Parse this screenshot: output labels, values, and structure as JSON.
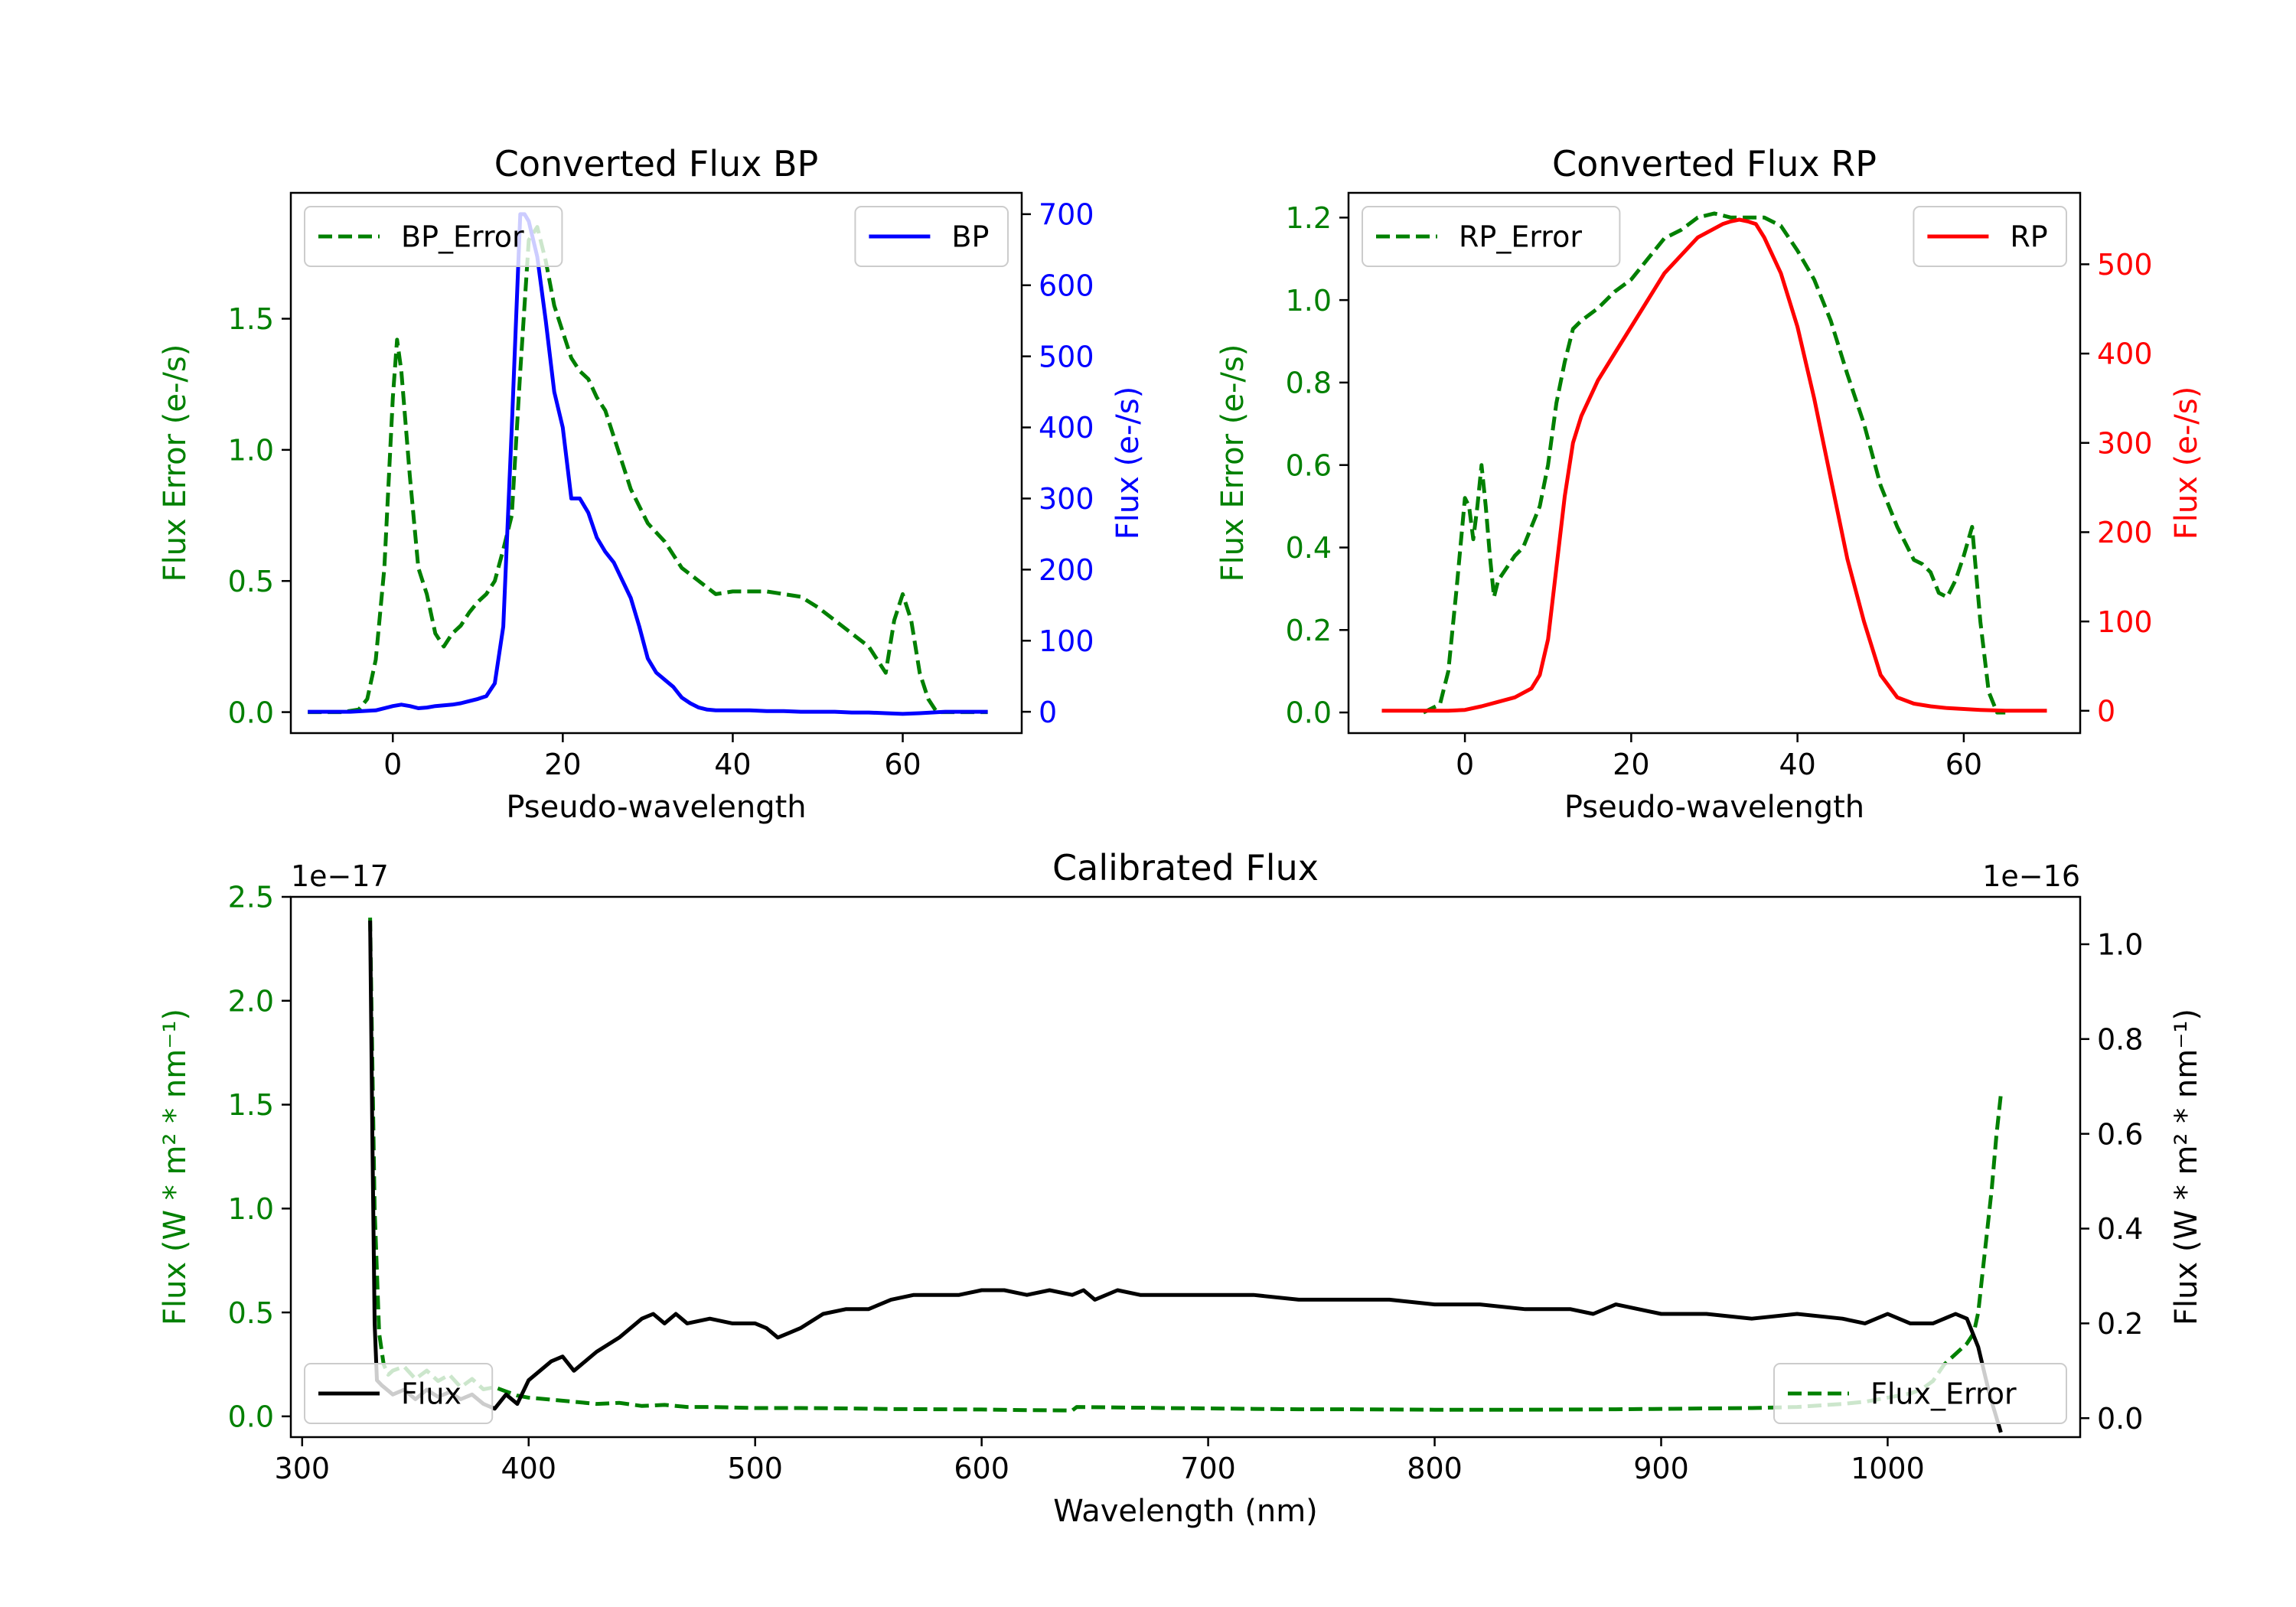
{
  "chart_data": [
    {
      "type": "line",
      "id": "bp",
      "title": "Converted Flux BP",
      "xlabel": "Pseudo-wavelength",
      "ylabel_left": "Flux Error (e-/s)",
      "ylabel_right": "Flux (e-/s)",
      "xlim": [
        -12,
        74
      ],
      "ylim_left": [
        -0.08,
        1.98
      ],
      "ylim_right": [
        -30,
        730
      ],
      "xticks": [
        0,
        20,
        40,
        60
      ],
      "yticks_left": [
        0.0,
        0.5,
        1.0,
        1.5
      ],
      "yticks_right": [
        0,
        100,
        200,
        300,
        400,
        500,
        600,
        700
      ],
      "series": [
        {
          "name": "BP_Error",
          "axis": "left",
          "color": "#008000",
          "style": "dashed",
          "legend": "upper left",
          "x": [
            -10,
            -6,
            -4,
            -3,
            -2,
            -1,
            0,
            0.5,
            1,
            2,
            3,
            3.5,
            4,
            5,
            6,
            7,
            8,
            9,
            10,
            11,
            12,
            13,
            14,
            15,
            16,
            17,
            18,
            19,
            20,
            21,
            22,
            23,
            24,
            25,
            26,
            27,
            28,
            30,
            32,
            34,
            36,
            38,
            40,
            42,
            44,
            46,
            48,
            50,
            52,
            54,
            56,
            57,
            58,
            59,
            60,
            61,
            62,
            63,
            64,
            66,
            70
          ],
          "y": [
            0.0,
            0.0,
            0.01,
            0.05,
            0.2,
            0.55,
            1.2,
            1.42,
            1.3,
            0.9,
            0.55,
            0.5,
            0.45,
            0.3,
            0.25,
            0.3,
            0.33,
            0.38,
            0.42,
            0.45,
            0.5,
            0.62,
            0.75,
            1.3,
            1.8,
            1.85,
            1.72,
            1.55,
            1.45,
            1.35,
            1.3,
            1.27,
            1.2,
            1.15,
            1.05,
            0.95,
            0.85,
            0.72,
            0.65,
            0.55,
            0.5,
            0.45,
            0.46,
            0.46,
            0.46,
            0.45,
            0.44,
            0.4,
            0.35,
            0.3,
            0.25,
            0.2,
            0.15,
            0.35,
            0.45,
            0.35,
            0.15,
            0.05,
            0.0,
            0.0,
            0.0
          ]
        },
        {
          "name": "BP",
          "axis": "right",
          "color": "#0000ff",
          "style": "solid",
          "legend": "upper right",
          "x": [
            -10,
            -5,
            -2,
            0,
            1,
            2,
            3,
            4,
            5,
            6,
            7,
            8,
            9,
            10,
            11,
            12,
            13,
            14,
            15,
            15.5,
            16,
            17,
            18,
            19,
            20,
            21,
            22,
            23,
            24,
            25,
            26,
            27,
            28,
            29,
            30,
            31,
            32,
            33,
            34,
            35,
            36,
            37,
            38,
            40,
            42,
            44,
            46,
            48,
            50,
            52,
            54,
            56,
            58,
            60,
            62,
            65,
            70
          ],
          "y": [
            0,
            0,
            2,
            8,
            10,
            8,
            5,
            6,
            8,
            9,
            10,
            12,
            15,
            18,
            22,
            40,
            120,
            400,
            700,
            700,
            690,
            640,
            550,
            450,
            400,
            300,
            300,
            280,
            245,
            225,
            210,
            185,
            160,
            120,
            75,
            55,
            45,
            35,
            20,
            12,
            6,
            3,
            2,
            2,
            2,
            1,
            1,
            0,
            0,
            0,
            -1,
            -1,
            -2,
            -3,
            -2,
            0,
            0
          ]
        }
      ]
    },
    {
      "type": "line",
      "id": "rp",
      "title": "Converted Flux RP",
      "xlabel": "Pseudo-wavelength",
      "ylabel_left": "Flux Error (e-/s)",
      "ylabel_right": "Flux (e-/s)",
      "xlim": [
        -14,
        74
      ],
      "ylim_left": [
        -0.05,
        1.26
      ],
      "ylim_right": [
        -25,
        580
      ],
      "xticks": [
        0,
        20,
        40,
        60
      ],
      "yticks_left": [
        0.0,
        0.2,
        0.4,
        0.6,
        0.8,
        1.0,
        1.2
      ],
      "yticks_right": [
        0,
        100,
        200,
        300,
        400,
        500
      ],
      "series": [
        {
          "name": "RP_Error",
          "axis": "left",
          "color": "#008000",
          "style": "dashed",
          "legend": "upper left",
          "x": [
            -5,
            -3,
            -2,
            -1,
            0,
            0.5,
            1,
            1.5,
            2,
            2.5,
            3,
            3.5,
            4,
            5,
            6,
            7,
            8,
            9,
            10,
            11,
            12,
            13,
            14,
            16,
            18,
            20,
            22,
            24,
            26,
            28,
            30,
            32,
            34,
            36,
            38,
            40,
            42,
            44,
            46,
            48,
            50,
            52,
            54,
            55,
            56,
            57,
            58,
            59,
            60,
            61,
            62,
            63,
            64,
            65
          ],
          "y": [
            0.0,
            0.02,
            0.1,
            0.3,
            0.52,
            0.5,
            0.42,
            0.5,
            0.6,
            0.5,
            0.38,
            0.28,
            0.32,
            0.35,
            0.38,
            0.4,
            0.45,
            0.5,
            0.6,
            0.75,
            0.85,
            0.93,
            0.95,
            0.98,
            1.02,
            1.05,
            1.1,
            1.15,
            1.17,
            1.2,
            1.21,
            1.2,
            1.2,
            1.2,
            1.18,
            1.12,
            1.05,
            0.95,
            0.82,
            0.7,
            0.55,
            0.45,
            0.37,
            0.36,
            0.34,
            0.29,
            0.28,
            0.32,
            0.38,
            0.45,
            0.22,
            0.05,
            0.0,
            0.0
          ]
        },
        {
          "name": "RP",
          "axis": "right",
          "color": "#ff0000",
          "style": "solid",
          "legend": "upper right",
          "x": [
            -10,
            -5,
            -2,
            0,
            2,
            4,
            6,
            8,
            9,
            10,
            11,
            12,
            13,
            14,
            16,
            18,
            20,
            22,
            24,
            26,
            28,
            30,
            31,
            32,
            33,
            34,
            35,
            36,
            38,
            40,
            42,
            44,
            46,
            48,
            50,
            52,
            54,
            56,
            58,
            60,
            62,
            65,
            70
          ],
          "y": [
            0,
            0,
            0,
            1,
            5,
            10,
            15,
            25,
            40,
            80,
            160,
            240,
            300,
            330,
            370,
            400,
            430,
            460,
            490,
            510,
            530,
            540,
            545,
            548,
            550,
            548,
            545,
            530,
            490,
            430,
            350,
            260,
            170,
            100,
            40,
            15,
            8,
            5,
            3,
            2,
            1,
            0,
            0
          ]
        }
      ]
    },
    {
      "type": "line",
      "id": "calibrated",
      "title": "Calibrated Flux",
      "xlabel": "Wavelength (nm)",
      "ylabel_left": "Flux (W * m² * nm⁻¹)",
      "ylabel_right": "Flux (W * m² * nm⁻¹)",
      "offset_left": "1e−17",
      "offset_right": "1e−16",
      "xlim": [
        295,
        1085
      ],
      "ylim_left": [
        -0.1,
        2.5
      ],
      "ylim_right": [
        -0.04,
        1.1
      ],
      "xticks": [
        300,
        400,
        500,
        600,
        700,
        800,
        900,
        1000
      ],
      "yticks_left": [
        0.0,
        0.5,
        1.0,
        1.5,
        2.0,
        2.5
      ],
      "yticks_right": [
        0.0,
        0.2,
        0.4,
        0.6,
        0.8,
        1.0
      ],
      "series": [
        {
          "name": "Flux_Error",
          "axis": "left",
          "color": "#008000",
          "style": "dashed",
          "legend": "lower right",
          "x": [
            330,
            332,
            334,
            336,
            338,
            340,
            345,
            350,
            355,
            360,
            365,
            370,
            375,
            380,
            385,
            390,
            395,
            400,
            410,
            420,
            430,
            440,
            450,
            460,
            470,
            480,
            500,
            520,
            540,
            560,
            580,
            600,
            620,
            640,
            642,
            660,
            680,
            700,
            720,
            740,
            760,
            780,
            800,
            820,
            840,
            860,
            880,
            900,
            920,
            940,
            960,
            980,
            990,
            1000,
            1010,
            1015,
            1020,
            1025,
            1030,
            1035,
            1038,
            1040,
            1042,
            1044,
            1046,
            1048,
            1050
          ],
          "y": [
            2.4,
            1.0,
            0.4,
            0.25,
            0.2,
            0.22,
            0.24,
            0.18,
            0.22,
            0.17,
            0.2,
            0.14,
            0.18,
            0.13,
            0.14,
            0.12,
            0.1,
            0.09,
            0.08,
            0.07,
            0.06,
            0.065,
            0.05,
            0.055,
            0.045,
            0.045,
            0.04,
            0.04,
            0.038,
            0.035,
            0.034,
            0.033,
            0.03,
            0.028,
            0.045,
            0.043,
            0.04,
            0.038,
            0.036,
            0.034,
            0.034,
            0.033,
            0.032,
            0.032,
            0.032,
            0.033,
            0.034,
            0.036,
            0.038,
            0.04,
            0.045,
            0.06,
            0.07,
            0.09,
            0.11,
            0.13,
            0.17,
            0.25,
            0.3,
            0.35,
            0.4,
            0.5,
            0.7,
            0.9,
            1.1,
            1.35,
            1.55
          ]
        },
        {
          "name": "Flux",
          "axis": "right",
          "color": "#000000",
          "style": "solid",
          "legend": "lower left",
          "x": [
            330,
            331,
            332,
            333,
            335,
            340,
            345,
            350,
            355,
            360,
            365,
            370,
            375,
            380,
            385,
            390,
            395,
            400,
            405,
            410,
            415,
            420,
            425,
            430,
            440,
            450,
            455,
            460,
            465,
            470,
            480,
            490,
            500,
            505,
            510,
            515,
            520,
            530,
            540,
            550,
            560,
            570,
            580,
            590,
            600,
            610,
            620,
            630,
            640,
            645,
            650,
            660,
            670,
            680,
            700,
            720,
            740,
            760,
            780,
            800,
            820,
            840,
            860,
            870,
            880,
            900,
            920,
            940,
            960,
            980,
            990,
            1000,
            1010,
            1020,
            1030,
            1035,
            1040,
            1045,
            1050
          ],
          "y": [
            1.05,
            0.6,
            0.2,
            0.08,
            0.07,
            0.05,
            0.06,
            0.04,
            0.06,
            0.045,
            0.055,
            0.04,
            0.05,
            0.03,
            0.02,
            0.05,
            0.03,
            0.08,
            0.1,
            0.12,
            0.13,
            0.1,
            0.12,
            0.14,
            0.17,
            0.21,
            0.22,
            0.2,
            0.22,
            0.2,
            0.21,
            0.2,
            0.2,
            0.19,
            0.17,
            0.18,
            0.19,
            0.22,
            0.23,
            0.23,
            0.25,
            0.26,
            0.26,
            0.26,
            0.27,
            0.27,
            0.26,
            0.27,
            0.26,
            0.27,
            0.25,
            0.27,
            0.26,
            0.26,
            0.26,
            0.26,
            0.25,
            0.25,
            0.25,
            0.24,
            0.24,
            0.23,
            0.23,
            0.22,
            0.24,
            0.22,
            0.22,
            0.21,
            0.22,
            0.21,
            0.2,
            0.22,
            0.2,
            0.2,
            0.22,
            0.21,
            0.15,
            0.05,
            -0.03
          ]
        }
      ]
    }
  ]
}
